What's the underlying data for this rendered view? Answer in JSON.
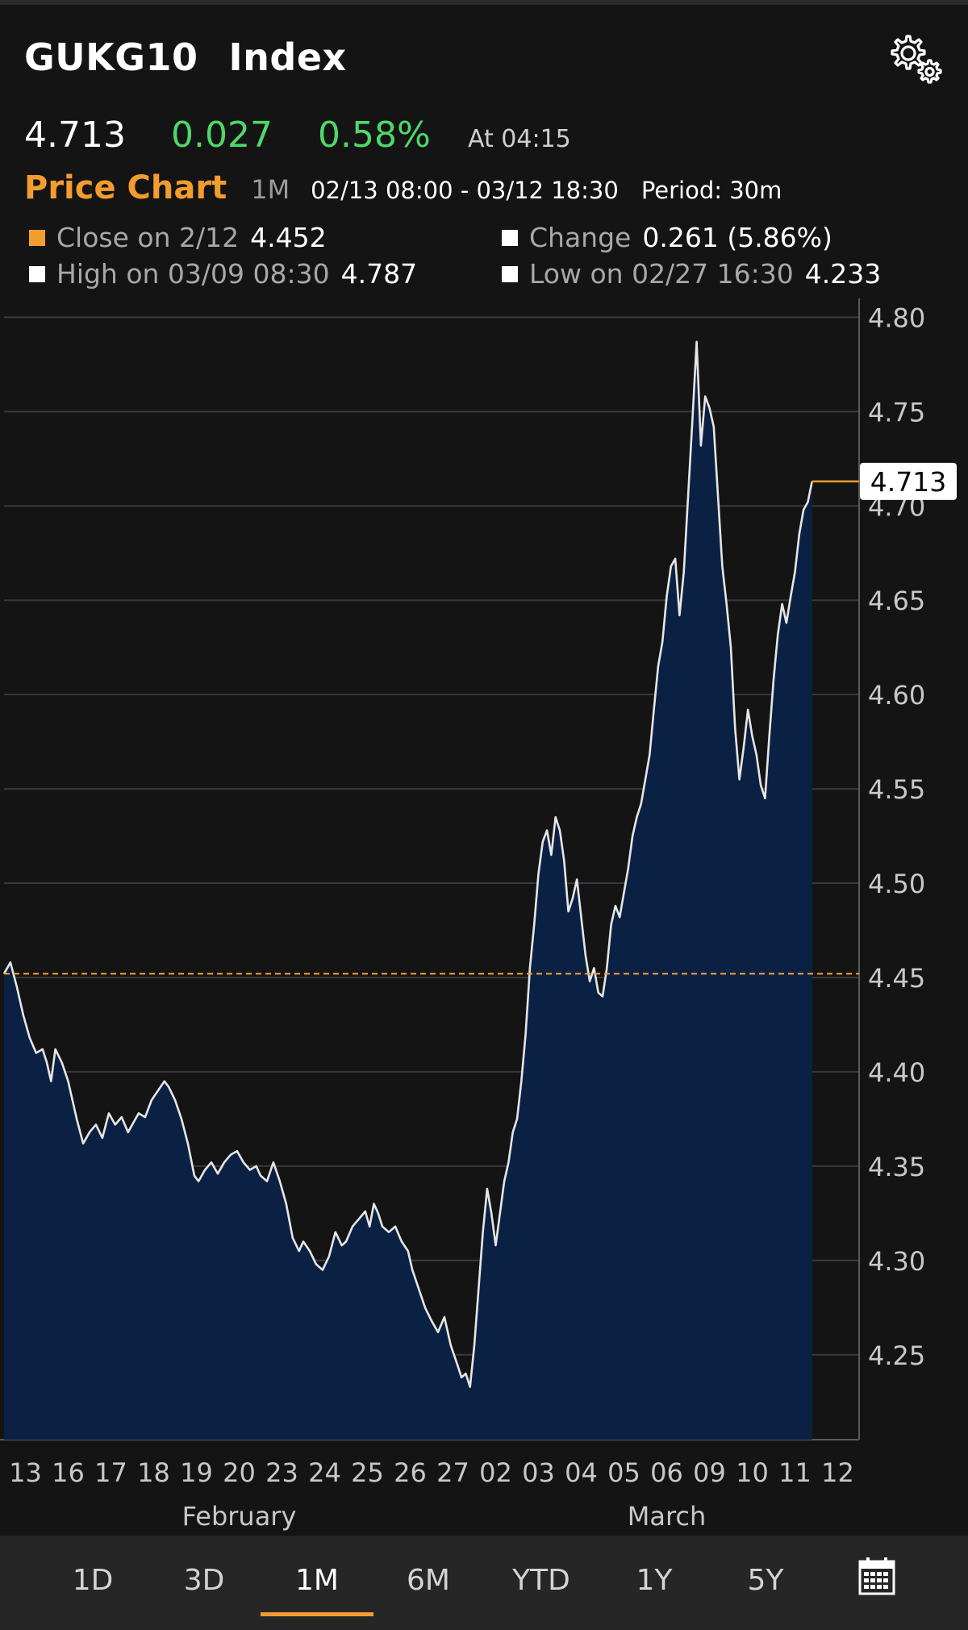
{
  "header": {
    "ticker": "GUKG10",
    "security_type": "Index",
    "settings_icon": "gears-icon"
  },
  "quote": {
    "price": "4.713",
    "change": "0.027",
    "change_pct": "0.58%",
    "time": "At 04:15"
  },
  "chart_header": {
    "title": "Price Chart",
    "range": "1M",
    "dates": "02/13 08:00 - 03/12 18:30",
    "period": "Period: 30m"
  },
  "stats": {
    "close": {
      "label": "Close on 2/12",
      "value": "4.452",
      "color": "#f39c2f"
    },
    "change": {
      "label": "Change",
      "value": "0.261 (5.86%)",
      "color": "#ffffff"
    },
    "high": {
      "label": "High on 03/09 08:30",
      "value": "4.787",
      "color": "#ffffff"
    },
    "low": {
      "label": "Low on 02/27 16:30",
      "value": "4.233",
      "color": "#ffffff"
    }
  },
  "tabs": [
    {
      "label": "1D",
      "active": false
    },
    {
      "label": "3D",
      "active": false
    },
    {
      "label": "1M",
      "active": true
    },
    {
      "label": "6M",
      "active": false
    },
    {
      "label": "YTD",
      "active": false
    },
    {
      "label": "1Y",
      "active": false
    },
    {
      "label": "5Y",
      "active": false
    }
  ],
  "calendar_icon": "calendar-icon",
  "colors": {
    "background": "#141414",
    "accent": "#f39c2f",
    "positive": "#4fd86a",
    "area_fill": "#0b2144",
    "line": "#e6e6e6",
    "grid": "#3a3a3a"
  },
  "chart_data": {
    "type": "area",
    "y_ticks": [
      "4.80",
      "4.75",
      "4.70",
      "4.65",
      "4.60",
      "4.55",
      "4.50",
      "4.45",
      "4.40",
      "4.35",
      "4.30",
      "4.25"
    ],
    "ylim": [
      4.205,
      4.81
    ],
    "x_ticks": [
      "13",
      "16",
      "17",
      "18",
      "19",
      "20",
      "23",
      "24",
      "25",
      "26",
      "27",
      "02",
      "03",
      "04",
      "05",
      "06",
      "09",
      "10",
      "11",
      "12"
    ],
    "x_months": [
      "February",
      "March"
    ],
    "reference_line": {
      "label": "Close on 2/12",
      "value": 4.452
    },
    "last_value_label": "4.713",
    "series": [
      {
        "points": [
          [
            0.0,
            4.452
          ],
          [
            0.15,
            4.458
          ],
          [
            0.3,
            4.445
          ],
          [
            0.45,
            4.43
          ],
          [
            0.6,
            4.418
          ],
          [
            0.75,
            4.41
          ],
          [
            0.9,
            4.412
          ],
          [
            1.0,
            4.405
          ],
          [
            1.1,
            4.395
          ],
          [
            1.2,
            4.412
          ],
          [
            1.35,
            4.405
          ],
          [
            1.5,
            4.395
          ],
          [
            1.6,
            4.385
          ],
          [
            1.7,
            4.375
          ],
          [
            1.85,
            4.362
          ],
          [
            2.0,
            4.368
          ],
          [
            2.15,
            4.372
          ],
          [
            2.3,
            4.365
          ],
          [
            2.45,
            4.378
          ],
          [
            2.6,
            4.372
          ],
          [
            2.75,
            4.376
          ],
          [
            2.9,
            4.368
          ],
          [
            3.0,
            4.372
          ],
          [
            3.15,
            4.378
          ],
          [
            3.3,
            4.376
          ],
          [
            3.45,
            4.385
          ],
          [
            3.6,
            4.39
          ],
          [
            3.75,
            4.395
          ],
          [
            3.85,
            4.392
          ],
          [
            4.0,
            4.385
          ],
          [
            4.15,
            4.375
          ],
          [
            4.3,
            4.362
          ],
          [
            4.45,
            4.345
          ],
          [
            4.55,
            4.342
          ],
          [
            4.7,
            4.348
          ],
          [
            4.85,
            4.352
          ],
          [
            5.0,
            4.346
          ],
          [
            5.15,
            4.352
          ],
          [
            5.3,
            4.356
          ],
          [
            5.45,
            4.358
          ],
          [
            5.6,
            4.352
          ],
          [
            5.75,
            4.348
          ],
          [
            5.9,
            4.35
          ],
          [
            6.0,
            4.345
          ],
          [
            6.15,
            4.342
          ],
          [
            6.3,
            4.352
          ],
          [
            6.45,
            4.342
          ],
          [
            6.6,
            4.33
          ],
          [
            6.75,
            4.312
          ],
          [
            6.9,
            4.305
          ],
          [
            7.0,
            4.31
          ],
          [
            7.15,
            4.305
          ],
          [
            7.3,
            4.298
          ],
          [
            7.45,
            4.295
          ],
          [
            7.6,
            4.302
          ],
          [
            7.75,
            4.315
          ],
          [
            7.9,
            4.308
          ],
          [
            8.0,
            4.31
          ],
          [
            8.15,
            4.318
          ],
          [
            8.3,
            4.322
          ],
          [
            8.45,
            4.326
          ],
          [
            8.55,
            4.318
          ],
          [
            8.65,
            4.33
          ],
          [
            8.75,
            4.325
          ],
          [
            8.85,
            4.318
          ],
          [
            9.0,
            4.315
          ],
          [
            9.15,
            4.318
          ],
          [
            9.3,
            4.31
          ],
          [
            9.45,
            4.305
          ],
          [
            9.55,
            4.295
          ],
          [
            9.7,
            4.285
          ],
          [
            9.85,
            4.275
          ],
          [
            10.0,
            4.268
          ],
          [
            10.15,
            4.262
          ],
          [
            10.3,
            4.27
          ],
          [
            10.45,
            4.255
          ],
          [
            10.6,
            4.245
          ],
          [
            10.7,
            4.238
          ],
          [
            10.8,
            4.24
          ],
          [
            10.9,
            4.233
          ],
          [
            11.0,
            4.255
          ],
          [
            11.1,
            4.285
          ],
          [
            11.2,
            4.315
          ],
          [
            11.3,
            4.338
          ],
          [
            11.4,
            4.325
          ],
          [
            11.5,
            4.308
          ],
          [
            11.6,
            4.325
          ],
          [
            11.7,
            4.342
          ],
          [
            11.8,
            4.352
          ],
          [
            11.9,
            4.368
          ],
          [
            12.0,
            4.375
          ],
          [
            12.1,
            4.395
          ],
          [
            12.2,
            4.42
          ],
          [
            12.3,
            4.455
          ],
          [
            12.4,
            4.478
          ],
          [
            12.5,
            4.505
          ],
          [
            12.6,
            4.522
          ],
          [
            12.7,
            4.528
          ],
          [
            12.8,
            4.515
          ],
          [
            12.9,
            4.535
          ],
          [
            13.0,
            4.528
          ],
          [
            13.1,
            4.512
          ],
          [
            13.2,
            4.485
          ],
          [
            13.3,
            4.492
          ],
          [
            13.4,
            4.502
          ],
          [
            13.5,
            4.482
          ],
          [
            13.6,
            4.462
          ],
          [
            13.7,
            4.448
          ],
          [
            13.8,
            4.455
          ],
          [
            13.9,
            4.442
          ],
          [
            14.0,
            4.44
          ],
          [
            14.1,
            4.455
          ],
          [
            14.2,
            4.478
          ],
          [
            14.3,
            4.488
          ],
          [
            14.4,
            4.482
          ],
          [
            14.5,
            4.495
          ],
          [
            14.6,
            4.508
          ],
          [
            14.7,
            4.525
          ],
          [
            14.8,
            4.535
          ],
          [
            14.9,
            4.542
          ],
          [
            15.0,
            4.555
          ],
          [
            15.1,
            4.568
          ],
          [
            15.2,
            4.592
          ],
          [
            15.3,
            4.615
          ],
          [
            15.4,
            4.628
          ],
          [
            15.5,
            4.652
          ],
          [
            15.6,
            4.668
          ],
          [
            15.7,
            4.672
          ],
          [
            15.8,
            4.642
          ],
          [
            15.9,
            4.665
          ],
          [
            16.0,
            4.705
          ],
          [
            16.1,
            4.745
          ],
          [
            16.2,
            4.787
          ],
          [
            16.3,
            4.732
          ],
          [
            16.4,
            4.758
          ],
          [
            16.5,
            4.752
          ],
          [
            16.6,
            4.742
          ],
          [
            16.7,
            4.705
          ],
          [
            16.8,
            4.668
          ],
          [
            16.9,
            4.648
          ],
          [
            17.0,
            4.625
          ],
          [
            17.1,
            4.582
          ],
          [
            17.2,
            4.555
          ],
          [
            17.3,
            4.572
          ],
          [
            17.4,
            4.592
          ],
          [
            17.5,
            4.578
          ],
          [
            17.6,
            4.568
          ],
          [
            17.7,
            4.552
          ],
          [
            17.8,
            4.545
          ],
          [
            17.9,
            4.578
          ],
          [
            18.0,
            4.608
          ],
          [
            18.1,
            4.632
          ],
          [
            18.2,
            4.648
          ],
          [
            18.3,
            4.638
          ],
          [
            18.4,
            4.652
          ],
          [
            18.5,
            4.665
          ],
          [
            18.6,
            4.685
          ],
          [
            18.7,
            4.698
          ],
          [
            18.8,
            4.702
          ],
          [
            18.9,
            4.713
          ]
        ]
      }
    ]
  }
}
